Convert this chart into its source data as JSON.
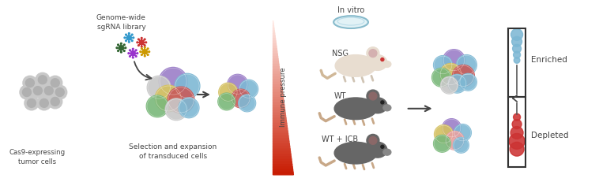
{
  "bg_color": "#ffffff",
  "text_color": "#444444",
  "labels": {
    "genome_wide": "Genome-wide\nsgRNA library",
    "cas9": "Cas9-expressing\ntumor cells",
    "selection": "Selection and expansion\nof transduced cells",
    "in_vitro": "In vitro",
    "nsg": "NSG",
    "wt": "WT",
    "wt_icb": "WT + ICB",
    "immune_pressure": "Immune pressure",
    "enriched": "Enriched",
    "depleted": "Depleted"
  },
  "virus_colors": [
    "#3399cc",
    "#cc3333",
    "#336633",
    "#9933cc",
    "#cc9900"
  ],
  "cell_colors_large": [
    [
      0,
      14,
      "#9b7ec8",
      18
    ],
    [
      18,
      8,
      "#7eb8d4",
      16
    ],
    [
      -18,
      6,
      "#c8c8c8",
      15
    ],
    [
      -6,
      -8,
      "#d4c060",
      17
    ],
    [
      10,
      -10,
      "#c85a5a",
      17
    ],
    [
      -20,
      -18,
      "#7ab87a",
      14
    ],
    [
      4,
      -22,
      "#c8c8c8",
      14
    ],
    [
      20,
      -20,
      "#7eb8d4",
      13
    ]
  ],
  "cell_colors_small": [
    [
      0,
      12,
      "#9b7ec8",
      13
    ],
    [
      14,
      6,
      "#7eb8d4",
      12
    ],
    [
      -12,
      2,
      "#d4c060",
      12
    ],
    [
      4,
      -6,
      "#c85a5a",
      12
    ],
    [
      -14,
      -10,
      "#7ab87a",
      11
    ],
    [
      12,
      -12,
      "#7eb8d4",
      11
    ]
  ],
  "cells_nsg": [
    [
      0,
      14,
      "#9b7ec8",
      14
    ],
    [
      16,
      8,
      "#7eb8d4",
      13
    ],
    [
      -14,
      8,
      "#7eb8d4",
      12
    ],
    [
      -4,
      -4,
      "#d4c060",
      14
    ],
    [
      12,
      -6,
      "#c85a5a",
      14
    ],
    [
      -16,
      -8,
      "#7ab87a",
      12
    ],
    [
      4,
      -16,
      "#7eb8d4",
      12
    ],
    [
      -6,
      -18,
      "#c8c8c8",
      11
    ],
    [
      18,
      -14,
      "#7eb8d4",
      11
    ]
  ],
  "cells_wt": [
    [
      0,
      10,
      "#9b7ec8",
      12
    ],
    [
      14,
      4,
      "#7eb8d4",
      11
    ],
    [
      -10,
      2,
      "#d4c060",
      12
    ],
    [
      4,
      -6,
      "#e8a0a0",
      12
    ],
    [
      -12,
      -10,
      "#7ab87a",
      11
    ],
    [
      12,
      -12,
      "#7eb8d4",
      10
    ]
  ]
}
